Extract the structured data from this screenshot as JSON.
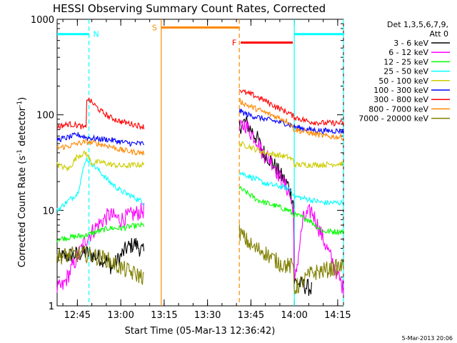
{
  "chart_data": {
    "type": "line",
    "title": "HESSI Observing Summary Count Rates, Corrected",
    "xlabel": "Start Time (05-Mar-13 12:36:42)",
    "ylabel_main": "Corrected Count Rate (s",
    "ylabel_sup1": "-1",
    "ylabel_mid": " detector",
    "ylabel_sup2": "-1",
    "ylabel_end": ")",
    "y_scale": "log",
    "ylim": [
      1,
      1000
    ],
    "xlim_minutes": [
      38,
      137
    ],
    "x_ticks": [
      {
        "minutes": 45,
        "label": "12:45"
      },
      {
        "minutes": 60,
        "label": "13:00"
      },
      {
        "minutes": 75,
        "label": "13:15"
      },
      {
        "minutes": 90,
        "label": "13:30"
      },
      {
        "minutes": 105,
        "label": "13:45"
      },
      {
        "minutes": 120,
        "label": "14:00"
      },
      {
        "minutes": 135,
        "label": "14:15"
      }
    ],
    "y_ticks": [
      {
        "value": 1,
        "label": "1"
      },
      {
        "value": 10,
        "label": "10"
      },
      {
        "value": 100,
        "label": "100"
      },
      {
        "value": 1000,
        "label": "1000"
      }
    ],
    "legend": {
      "header1": "Det 1,3,5,6,7,9,",
      "header2": "Att 0",
      "position": "right"
    },
    "series": [
      {
        "name": "3 - 6 keV",
        "color": "#000000",
        "seg1": [
          [
            38,
            3.2
          ],
          [
            48,
            3.6
          ],
          [
            55,
            3.0
          ],
          [
            57,
            2.5
          ],
          [
            62,
            4.0
          ],
          [
            65,
            4.5
          ],
          [
            68,
            3.6
          ]
        ],
        "seg2": [
          [
            101,
            75
          ],
          [
            103,
            85
          ],
          [
            105,
            70
          ],
          [
            107,
            58
          ],
          [
            109,
            42
          ],
          [
            111,
            36
          ],
          [
            113,
            30
          ],
          [
            115,
            24
          ],
          [
            118,
            18
          ],
          [
            119.8,
            12
          ],
          [
            120,
            1.8
          ],
          [
            126,
            1.5
          ]
        ]
      },
      {
        "name": "6 - 12 keV",
        "color": "#ff00ff",
        "seg1": [
          [
            38,
            1.5
          ],
          [
            40,
            1.6
          ],
          [
            48,
            5
          ],
          [
            52,
            7
          ],
          [
            56,
            9
          ],
          [
            60,
            8
          ],
          [
            64,
            9
          ],
          [
            68,
            10
          ]
        ],
        "seg2": [
          [
            101,
            70
          ],
          [
            103,
            80
          ],
          [
            105,
            65
          ],
          [
            107,
            55
          ],
          [
            109,
            40
          ],
          [
            111,
            36
          ],
          [
            113,
            30
          ],
          [
            115,
            22
          ],
          [
            118,
            16
          ],
          [
            119.8,
            10
          ],
          [
            120,
            1.6
          ],
          [
            123,
            8
          ],
          [
            126,
            10
          ],
          [
            137,
            1.5
          ]
        ]
      },
      {
        "name": "12 - 25 keV",
        "color": "#00ff00",
        "seg1": [
          [
            38,
            5
          ],
          [
            48,
            5.5
          ],
          [
            52,
            6
          ],
          [
            56,
            6.5
          ],
          [
            60,
            6.5
          ],
          [
            64,
            6.8
          ],
          [
            68,
            7
          ]
        ],
        "seg2": [
          [
            101,
            17
          ],
          [
            104,
            15
          ],
          [
            107,
            13
          ],
          [
            110,
            12
          ],
          [
            114,
            11
          ],
          [
            118,
            10
          ],
          [
            119.8,
            9
          ],
          [
            120,
            9
          ],
          [
            125,
            8
          ],
          [
            130,
            6
          ],
          [
            137,
            6
          ]
        ]
      },
      {
        "name": "25 - 50 keV",
        "color": "#00ffff",
        "seg1": [
          [
            38,
            10
          ],
          [
            41,
            12
          ],
          [
            45,
            15
          ],
          [
            48,
            35
          ],
          [
            50,
            31
          ],
          [
            53,
            25
          ],
          [
            56,
            20
          ],
          [
            60,
            16
          ],
          [
            64,
            14
          ],
          [
            68,
            12
          ]
        ],
        "seg2": [
          [
            101,
            25
          ],
          [
            104,
            23
          ],
          [
            107,
            21
          ],
          [
            110,
            19
          ],
          [
            114,
            18
          ],
          [
            118,
            17
          ],
          [
            119.8,
            15
          ],
          [
            120,
            14
          ],
          [
            125,
            13
          ],
          [
            130,
            12
          ],
          [
            137,
            12
          ]
        ]
      },
      {
        "name": "50 - 100 keV",
        "color": "#cccc00",
        "seg1": [
          [
            38,
            30
          ],
          [
            42,
            27
          ],
          [
            45,
            37
          ],
          [
            48,
            40
          ],
          [
            50,
            31
          ],
          [
            53,
            32
          ],
          [
            57,
            30
          ],
          [
            61,
            29
          ],
          [
            65,
            30
          ],
          [
            68,
            30
          ]
        ],
        "seg2": [
          [
            101,
            50
          ],
          [
            104,
            47
          ],
          [
            107,
            43
          ],
          [
            110,
            40
          ],
          [
            114,
            38
          ],
          [
            118,
            36
          ],
          [
            119.8,
            33
          ],
          [
            120,
            30
          ],
          [
            125,
            30
          ],
          [
            130,
            30
          ],
          [
            137,
            31
          ]
        ]
      },
      {
        "name": "100 - 300 keV",
        "color": "#0000ff",
        "seg1": [
          [
            38,
            55
          ],
          [
            42,
            58
          ],
          [
            45,
            62
          ],
          [
            48,
            58
          ],
          [
            52,
            56
          ],
          [
            56,
            55
          ],
          [
            60,
            52
          ],
          [
            64,
            50
          ],
          [
            68,
            50
          ]
        ],
        "seg2": [
          [
            101,
            110
          ],
          [
            104,
            100
          ],
          [
            107,
            95
          ],
          [
            110,
            90
          ],
          [
            114,
            85
          ],
          [
            118,
            80
          ],
          [
            120,
            75
          ],
          [
            125,
            70
          ],
          [
            130,
            68
          ],
          [
            137,
            68
          ]
        ]
      },
      {
        "name": "300 - 800 keV",
        "color": "#ff0000",
        "seg1": [
          [
            38,
            75
          ],
          [
            42,
            80
          ],
          [
            45,
            78
          ],
          [
            48,
            72
          ],
          [
            48.2,
            150
          ],
          [
            50,
            135
          ],
          [
            53,
            110
          ],
          [
            56,
            95
          ],
          [
            60,
            85
          ],
          [
            64,
            80
          ],
          [
            68,
            75
          ]
        ],
        "seg2": [
          [
            101,
            185
          ],
          [
            103,
            170
          ],
          [
            106,
            160
          ],
          [
            110,
            140
          ],
          [
            114,
            120
          ],
          [
            118,
            105
          ],
          [
            120,
            95
          ],
          [
            125,
            85
          ],
          [
            130,
            82
          ],
          [
            137,
            82
          ]
        ]
      },
      {
        "name": "800 - 7000 keV",
        "color": "#ff8800",
        "seg1": [
          [
            38,
            45
          ],
          [
            42,
            47
          ],
          [
            45,
            50
          ],
          [
            48,
            52
          ],
          [
            52,
            50
          ],
          [
            56,
            47
          ],
          [
            60,
            43
          ],
          [
            64,
            41
          ],
          [
            68,
            40
          ]
        ],
        "seg2": [
          [
            101,
            140
          ],
          [
            104,
            125
          ],
          [
            107,
            115
          ],
          [
            110,
            105
          ],
          [
            114,
            95
          ],
          [
            118,
            85
          ],
          [
            120,
            70
          ],
          [
            125,
            65
          ],
          [
            130,
            60
          ],
          [
            137,
            58
          ]
        ]
      },
      {
        "name": "7000 - 20000 keV",
        "color": "#808000",
        "seg1": [
          [
            38,
            3.3
          ],
          [
            48,
            3.5
          ],
          [
            55,
            3.1
          ],
          [
            60,
            2.5
          ],
          [
            64,
            2.2
          ],
          [
            68,
            2.0
          ]
        ],
        "seg2": [
          [
            101,
            6
          ],
          [
            103,
            5
          ],
          [
            106,
            4
          ],
          [
            109,
            3.8
          ],
          [
            112,
            3.2
          ],
          [
            115,
            2.8
          ],
          [
            118,
            2.6
          ],
          [
            119.8,
            2.6
          ],
          [
            120,
            1.5
          ],
          [
            126,
            2.2
          ],
          [
            137,
            2.6
          ]
        ]
      }
    ],
    "bars": [
      {
        "label": "N",
        "color": "#00ffff",
        "x0": 38,
        "x1": 49,
        "value": 700
      },
      {
        "label": "S",
        "color": "#ff8800",
        "x0": 74,
        "x1": 101,
        "value": 820
      },
      {
        "label": "F",
        "color": "#ff0000",
        "x0": 101.5,
        "x1": 119.5,
        "value": 570
      },
      {
        "label": "",
        "color": "#00ffff",
        "x0": 120,
        "x1": 137,
        "value": 700
      }
    ],
    "markers": [
      {
        "color": "#00ffff",
        "style": "dashed",
        "minutes": 49
      },
      {
        "color": "#ff8800",
        "style": "solid",
        "minutes": 74
      },
      {
        "color": "#ff8800",
        "style": "dashed",
        "minutes": 101
      },
      {
        "color": "#00ffff",
        "style": "solid",
        "minutes": 120
      },
      {
        "color": "#00ffff",
        "style": "dashed",
        "minutes": 137
      }
    ],
    "grid": false
  },
  "footer": {
    "date_stamp": "5-Mar-2013 20:06"
  }
}
